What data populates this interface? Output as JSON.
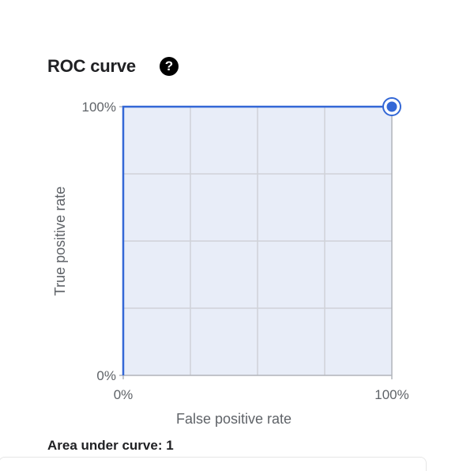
{
  "panel": {
    "title": "ROC curve",
    "help_icon": "help-circle-icon",
    "auc_label": "Area under curve: 1"
  },
  "chart_data": {
    "type": "line",
    "title": "ROC curve",
    "xlabel": "False positive rate",
    "ylabel": "True positive rate",
    "xlim": [
      0,
      100
    ],
    "ylim": [
      0,
      100
    ],
    "x_tick_labels": [
      "0%",
      "100%"
    ],
    "y_tick_labels": [
      "0%",
      "100%"
    ],
    "grid": true,
    "grid_divisions": 4,
    "series": [
      {
        "x": [
          0,
          0,
          100
        ],
        "y": [
          0,
          100,
          100
        ]
      }
    ],
    "highlighted_point": {
      "x": 100,
      "y": 100
    },
    "colors": {
      "line": "#3367d6",
      "plot_bg": "#e8edf8",
      "grid": "#cfd2d8",
      "axis": "#b0b4ba"
    }
  }
}
